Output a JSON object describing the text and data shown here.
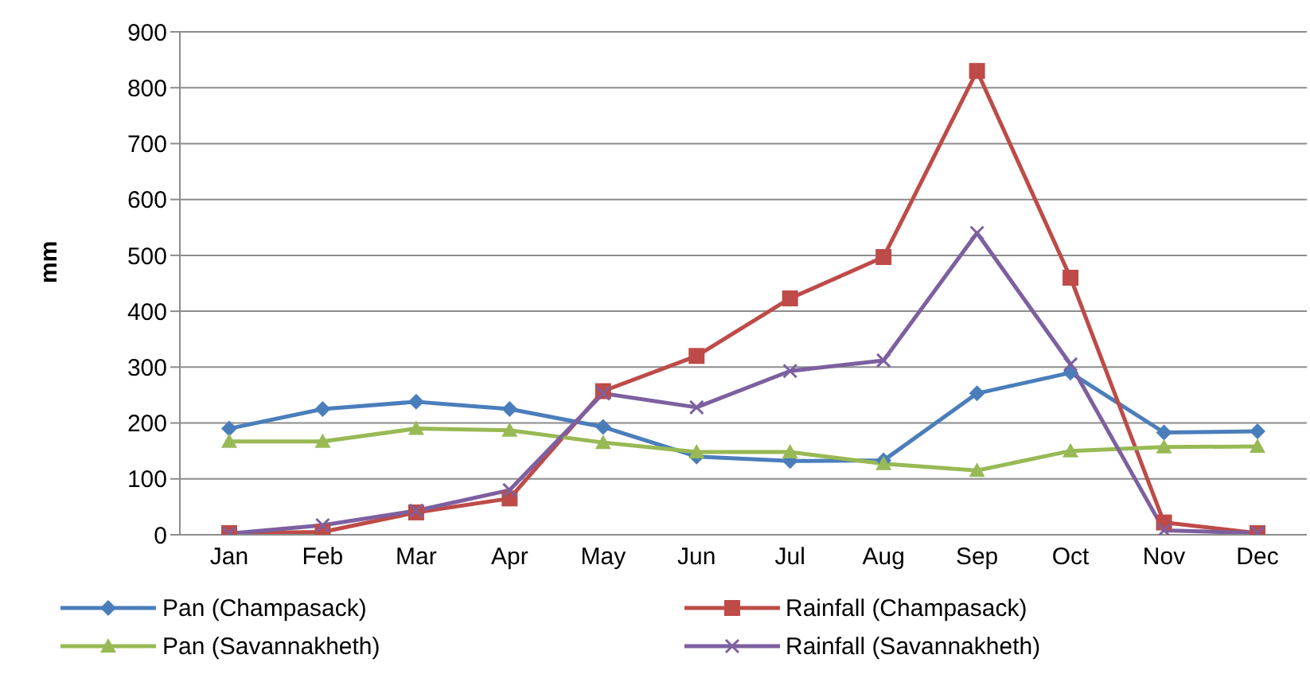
{
  "chart_data": {
    "type": "line",
    "ylabel": "mm",
    "categories": [
      "Jan",
      "Feb",
      "Mar",
      "Apr",
      "May",
      "Jun",
      "Jul",
      "Aug",
      "Sep",
      "Oct",
      "Nov",
      "Dec"
    ],
    "series": [
      {
        "name": "Pan (Champasack)",
        "color": "#4a7ebb",
        "marker": "diamond",
        "values": [
          190,
          225,
          238,
          225,
          193,
          140,
          132,
          133,
          253,
          290,
          183,
          185
        ]
      },
      {
        "name": "Rainfall (Champasack)",
        "color": "#be4b48",
        "marker": "square",
        "values": [
          3,
          5,
          40,
          65,
          257,
          320,
          423,
          497,
          830,
          460,
          22,
          3
        ]
      },
      {
        "name": "Pan (Savannakheth)",
        "color": "#98b954",
        "marker": "triangle",
        "values": [
          167,
          167,
          190,
          187,
          165,
          148,
          148,
          127,
          115,
          150,
          157,
          158
        ]
      },
      {
        "name": "Rainfall (Savannakheth)",
        "color": "#7d60a0",
        "marker": "cross",
        "values": [
          2,
          17,
          43,
          80,
          253,
          228,
          293,
          312,
          540,
          305,
          8,
          3
        ]
      }
    ],
    "ylim": [
      0,
      900
    ],
    "yticks": [
      0,
      100,
      200,
      300,
      400,
      500,
      600,
      700,
      800,
      900
    ],
    "grid": "y",
    "legend": "bottom"
  }
}
